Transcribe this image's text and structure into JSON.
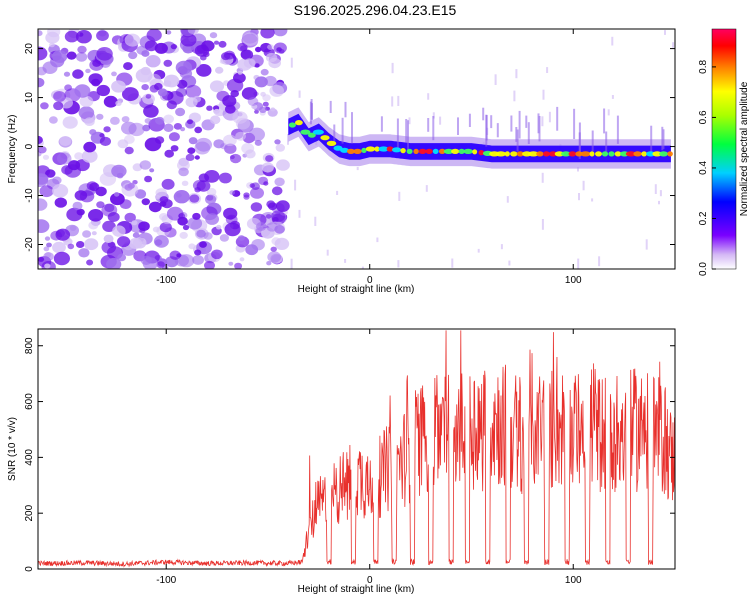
{
  "title": "S196.2025.296.04.23.E15",
  "colors": {
    "background": "#ffffff",
    "snr_line": "#e8302c",
    "axis": "#000000"
  },
  "chart_data": [
    {
      "type": "heatmap",
      "xlabel": "Height of straight line (km)",
      "ylabel": "Frequency (Hz)",
      "xlim": [
        -163,
        150
      ],
      "ylim": [
        -25,
        24
      ],
      "xticks": [
        -100,
        0,
        100
      ],
      "yticks": [
        -20,
        -10,
        0,
        10,
        20
      ],
      "colorbar": {
        "label": "Normalized spectral amplitude",
        "range": [
          0,
          0.95
        ],
        "ticks": [
          0.0,
          0.2,
          0.4,
          0.6,
          0.8
        ]
      },
      "grid": false,
      "ridge": {
        "x": [
          -40,
          -35,
          -30,
          -25,
          -20,
          -15,
          -10,
          -5,
          0,
          10,
          20,
          30,
          40,
          50,
          60,
          70,
          80,
          90,
          100,
          110,
          120,
          130,
          140,
          148
        ],
        "frequency": [
          4,
          5,
          2,
          3,
          1,
          -0.5,
          -1,
          -1,
          -0.5,
          -0.5,
          -1,
          -1,
          -1,
          -1,
          -1.5,
          -1.5,
          -1.5,
          -1.5,
          -1.5,
          -1.5,
          -1.5,
          -1.5,
          -1.5,
          -1.5
        ]
      },
      "noise_region_x": [
        -163,
        -42
      ]
    },
    {
      "type": "line",
      "xlabel": "Height of straight line (km)",
      "ylabel": "SNR (10 * v/v)",
      "xlim": [
        -163,
        150
      ],
      "ylim": [
        0,
        860
      ],
      "xticks": [
        -100,
        0,
        100
      ],
      "yticks": [
        0,
        200,
        400,
        600,
        800
      ],
      "grid": false,
      "series": [
        {
          "x": [
            -163,
            -140,
            -120,
            -100,
            -80,
            -60,
            -40,
            -33,
            -30,
            -25,
            -20,
            -15,
            -10,
            -5,
            0,
            5,
            10,
            15,
            20,
            25,
            30,
            35,
            40,
            45,
            50,
            55,
            60,
            65,
            70,
            75,
            80,
            85,
            90,
            95,
            100,
            105,
            110,
            115,
            120,
            125,
            130,
            135,
            140,
            145,
            148
          ],
          "values": [
            20,
            22,
            18,
            25,
            20,
            22,
            20,
            25,
            140,
            230,
            250,
            290,
            300,
            330,
            310,
            330,
            370,
            380,
            430,
            470,
            480,
            500,
            520,
            500,
            520,
            500,
            540,
            520,
            500,
            480,
            500,
            510,
            500,
            510,
            480,
            500,
            520,
            480,
            500,
            480,
            500,
            490,
            480,
            470,
            400
          ]
        }
      ],
      "dropouts_x": [
        -20,
        -8,
        3,
        12,
        21,
        30,
        40,
        48,
        58,
        68,
        77,
        87,
        97,
        107,
        117,
        127,
        138
      ]
    }
  ]
}
